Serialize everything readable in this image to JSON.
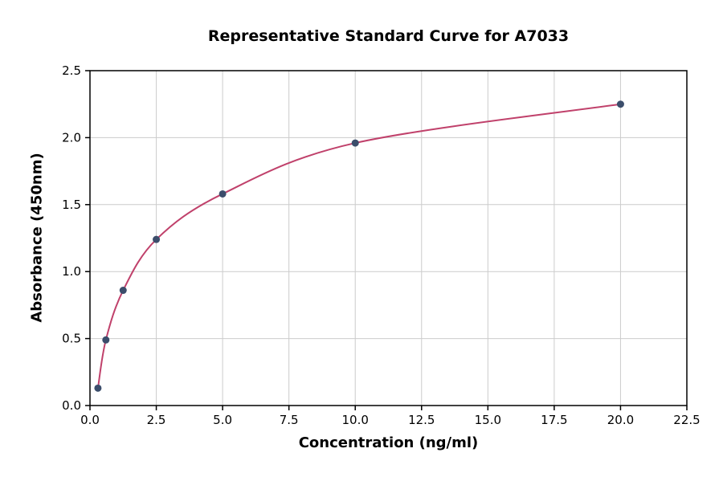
{
  "chart_data": {
    "type": "scatter",
    "title": "Representative Standard Curve for A7033",
    "xlabel": "Concentration (ng/ml)",
    "ylabel": "Absorbance (450nm)",
    "xlim": [
      0,
      22.5
    ],
    "ylim": [
      0,
      2.5
    ],
    "grid": true,
    "legend": "none",
    "x_ticks": {
      "values": [
        0,
        2.5,
        5,
        7.5,
        10,
        12.5,
        15,
        17.5,
        20,
        22.5
      ],
      "labels": [
        "0.0",
        "2.5",
        "5.0",
        "7.5",
        "10.0",
        "12.5",
        "15.0",
        "17.5",
        "20.0",
        "22.5"
      ]
    },
    "y_ticks": {
      "values": [
        0,
        0.5,
        1,
        1.5,
        2,
        2.5
      ],
      "labels": [
        "0.0",
        "0.5",
        "1.0",
        "1.5",
        "2.0",
        "2.5"
      ]
    },
    "points": {
      "x": [
        0.3,
        0.6,
        1.25,
        2.5,
        5,
        10,
        20
      ],
      "y": [
        0.13,
        0.49,
        0.86,
        1.24,
        1.58,
        1.96,
        2.25
      ]
    },
    "point_color": "#3b4d6b",
    "curve_color": "#c0416b",
    "grid_color": "#cccccc",
    "axis_color": "#000000",
    "background_color": "#ffffff"
  }
}
